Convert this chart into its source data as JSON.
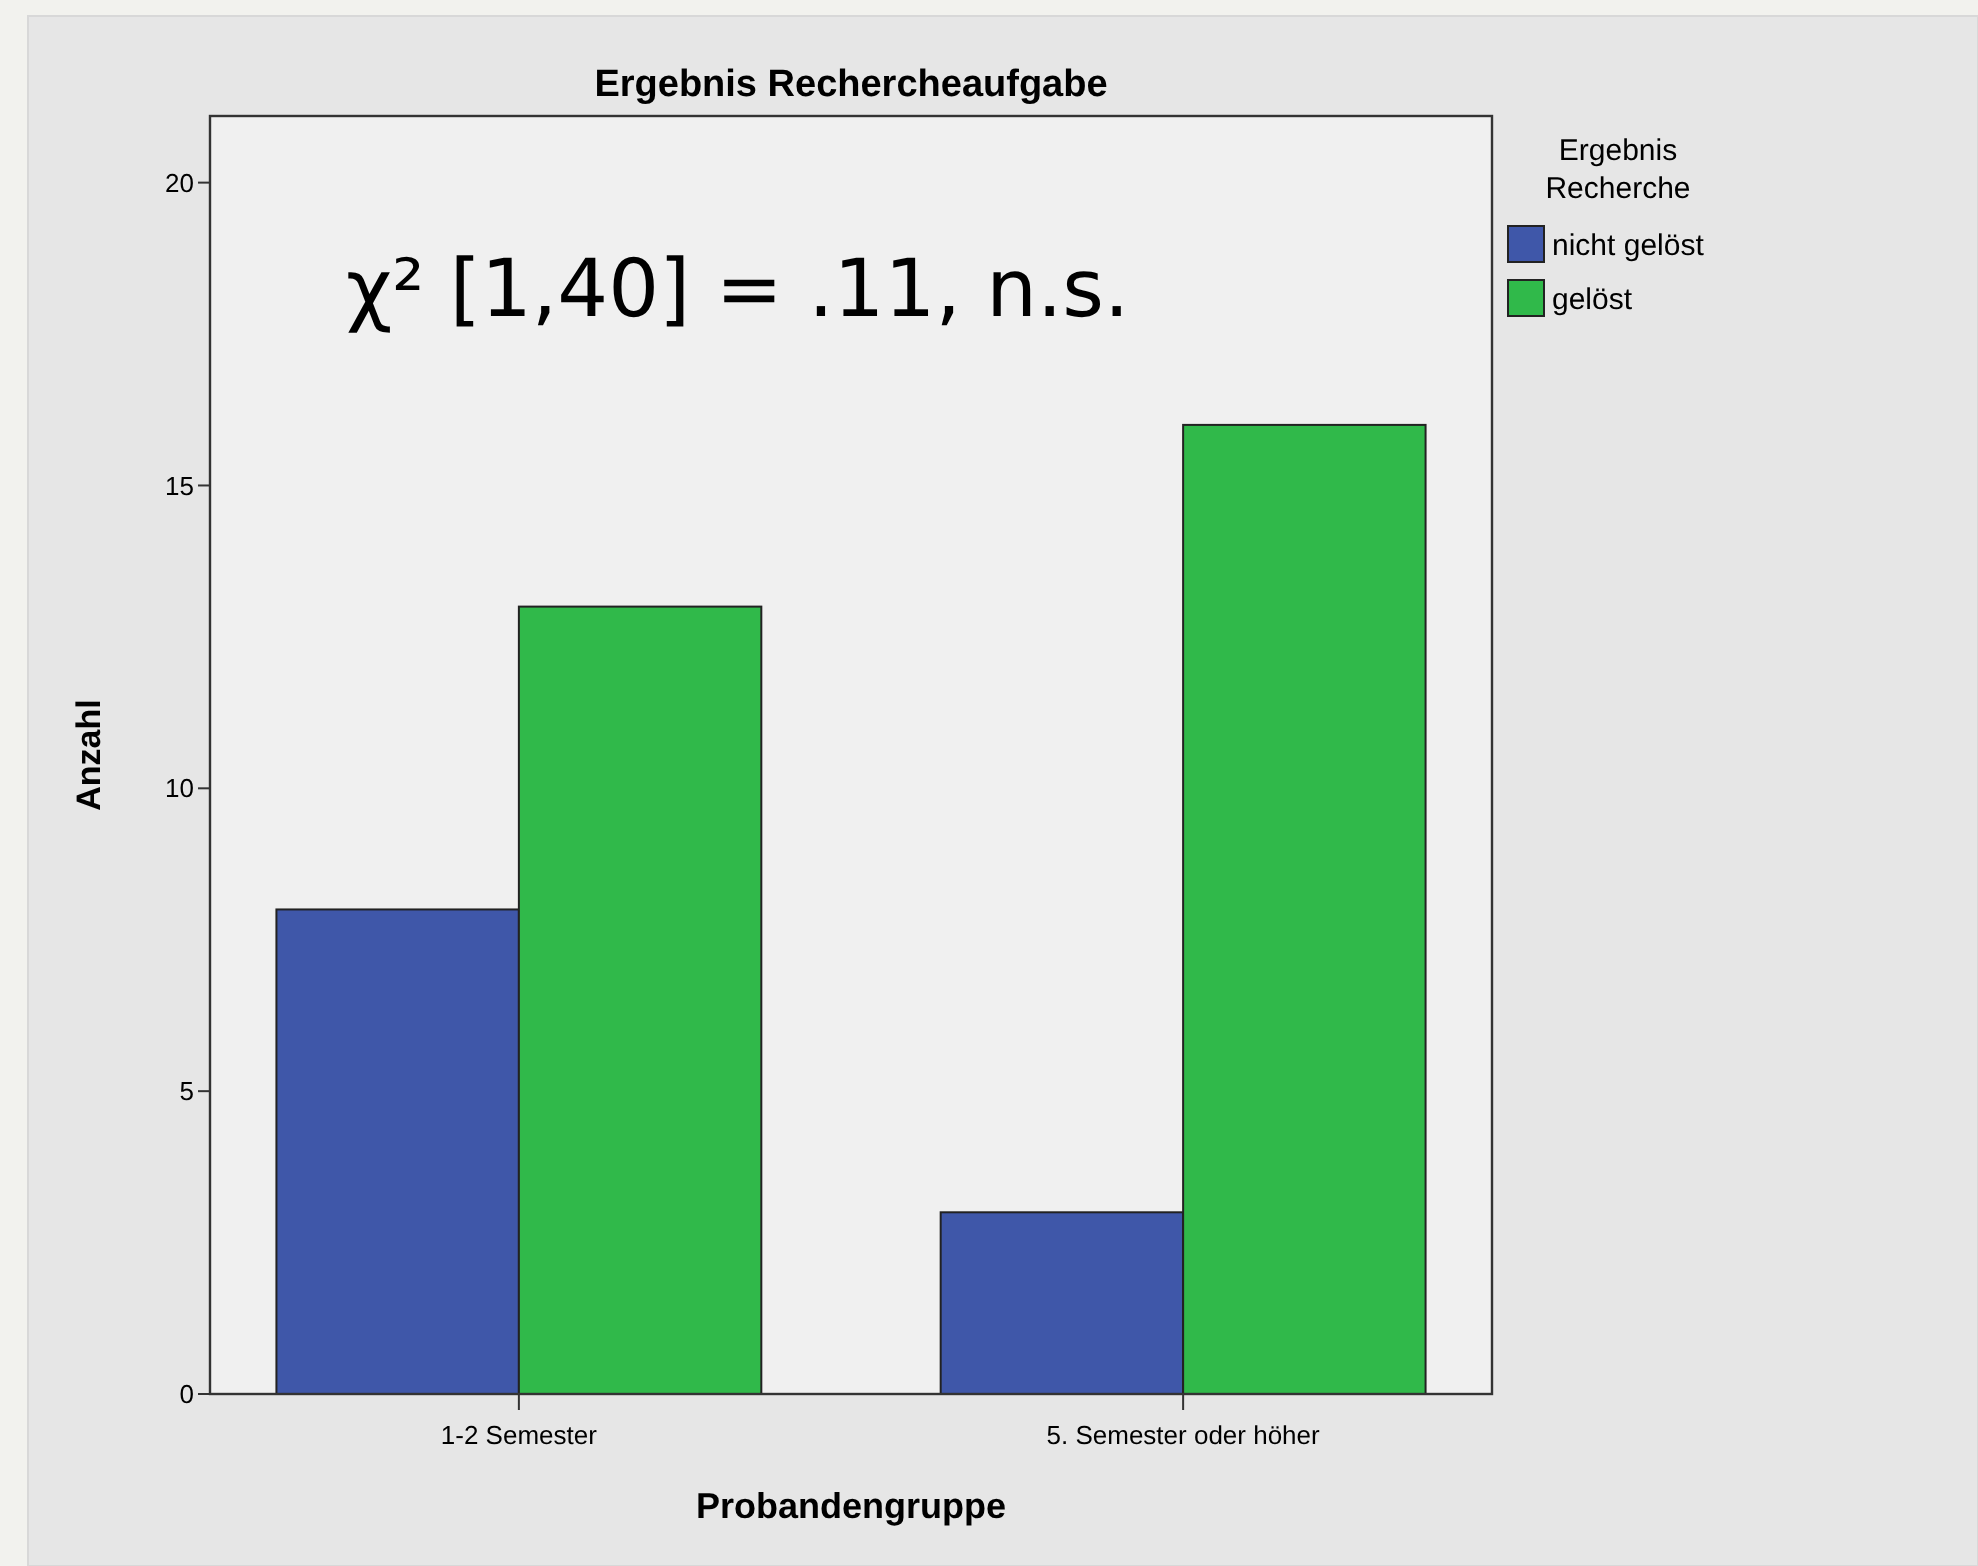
{
  "chart_data": {
    "type": "bar",
    "title": "Ergebnis Rechercheaufgabe",
    "xlabel": "Probandengruppe",
    "ylabel": "Anzahl",
    "legend_title": "Ergebnis Recherche",
    "categories": [
      "1-2 Semester",
      "5. Semester oder höher"
    ],
    "series": [
      {
        "name": "nicht gelöst",
        "color": "#3f57a9",
        "values": [
          8,
          3
        ]
      },
      {
        "name": "gelöst",
        "color": "#30b94a",
        "values": [
          13,
          16
        ]
      }
    ],
    "ylim": [
      0,
      21.1
    ],
    "yticks": [
      0,
      5,
      10,
      15,
      20
    ],
    "grid": false,
    "legend": "top right",
    "annotations": [
      "χ² [1,40] = .11, n.s."
    ]
  }
}
